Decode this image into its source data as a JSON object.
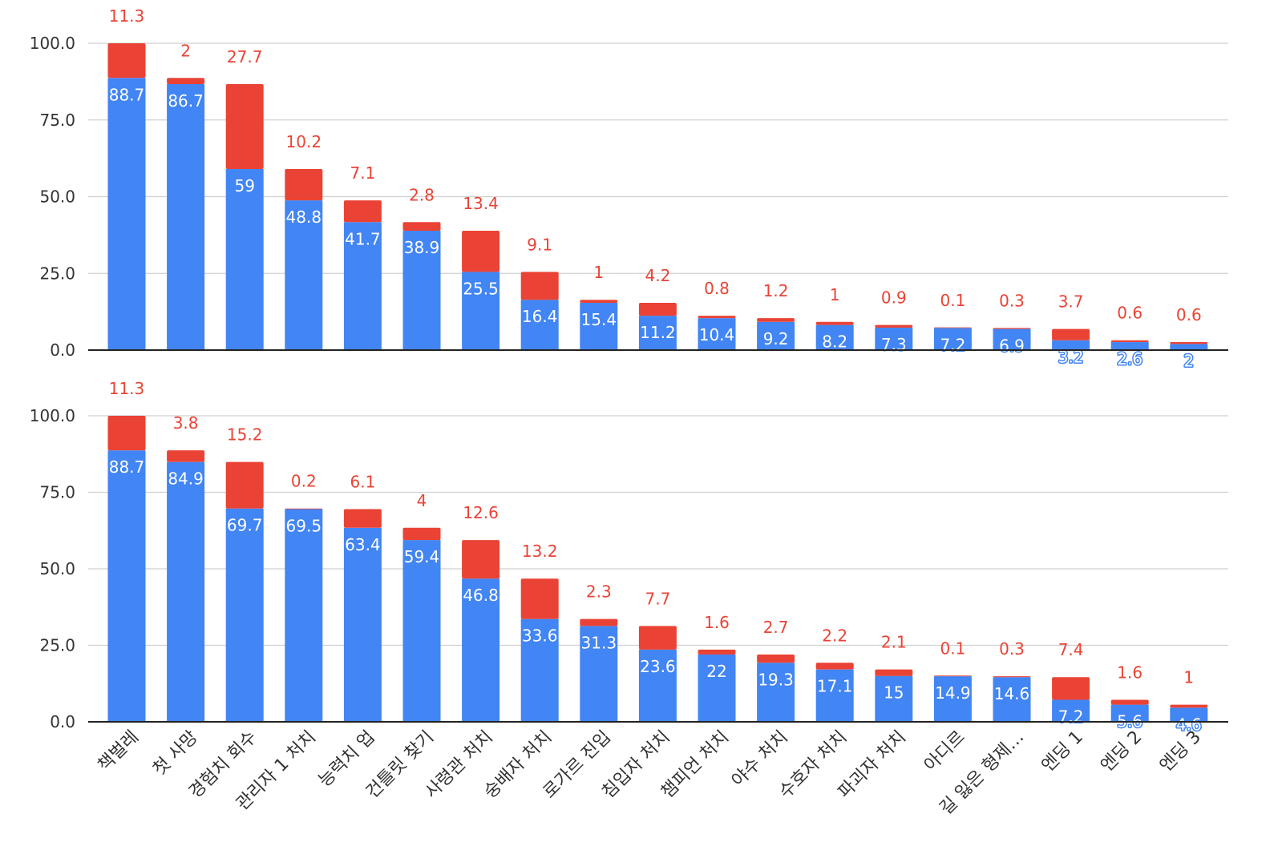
{
  "colors": {
    "base": "#4285f4",
    "top": "#ea4335",
    "grid": "#d0d0d0",
    "axis": "#222222",
    "tick": "#333333"
  },
  "chart_data": [
    {
      "type": "bar",
      "stacked": true,
      "title": "",
      "xlabel": "",
      "ylabel": "",
      "ylim": [
        0,
        100
      ],
      "yticks": [
        "0.0",
        "25.0",
        "50.0",
        "75.0",
        "100.0"
      ],
      "categories": [
        "책벌레",
        "첫 사망",
        "경험치 회수",
        "관리자 1 처치",
        "능력치 업",
        "건틀릿 찾기",
        "사령관 처치",
        "숭배자 처치",
        "로가르 진입",
        "침입자 처치",
        "챔피언 처치",
        "야수 처치",
        "수호자 처치",
        "파괴자 처치",
        "아디르",
        "길 잃은 형제…",
        "엔딩 1",
        "엔딩 2",
        "엔딩 3"
      ],
      "series": [
        {
          "name": "base",
          "color": "#4285f4",
          "values": [
            88.7,
            86.7,
            59,
            48.8,
            41.7,
            38.9,
            25.5,
            16.4,
            15.4,
            11.2,
            10.4,
            9.2,
            8.2,
            7.3,
            7.2,
            6.9,
            3.2,
            2.6,
            2
          ],
          "labels": [
            "88.7",
            "86.7",
            "59",
            "48.8",
            "41.7",
            "38.9",
            "25.5",
            "16.4",
            "15.4",
            "11.2",
            "10.4",
            "9.2",
            "8.2",
            "7.3",
            "7.2",
            "6.9",
            "3.2",
            "2.6",
            "2"
          ]
        },
        {
          "name": "extra",
          "color": "#ea4335",
          "values": [
            11.3,
            2,
            27.7,
            10.2,
            7.1,
            2.8,
            13.4,
            9.1,
            1,
            4.2,
            0.8,
            1.2,
            1,
            0.9,
            0.1,
            0.3,
            3.7,
            0.6,
            0.6
          ],
          "labels": [
            "11.3",
            "2",
            "27.7",
            "10.2",
            "7.1",
            "2.8",
            "13.4",
            "9.1",
            "1",
            "4.2",
            "0.8",
            "1.2",
            "1",
            "0.9",
            "0.1",
            "0.3",
            "3.7",
            "0.6",
            "0.6"
          ]
        }
      ]
    },
    {
      "type": "bar",
      "stacked": true,
      "title": "",
      "xlabel": "",
      "ylabel": "",
      "ylim": [
        0,
        100
      ],
      "yticks": [
        "0.0",
        "25.0",
        "50.0",
        "75.0",
        "100.0"
      ],
      "categories": [
        "책벌레",
        "첫 사망",
        "경험치 회수",
        "관리자 1 처치",
        "능력치 업",
        "건틀릿 찾기",
        "사령관 처치",
        "숭배자 처치",
        "로가르 진입",
        "침입자 처치",
        "챔피언 처치",
        "야수 처치",
        "수호자 처치",
        "파괴자 처치",
        "아디르",
        "길 잃은 형제…",
        "엔딩 1",
        "엔딩 2",
        "엔딩 3"
      ],
      "series": [
        {
          "name": "base",
          "color": "#4285f4",
          "values": [
            88.7,
            84.9,
            69.7,
            69.5,
            63.4,
            59.4,
            46.8,
            33.6,
            31.3,
            23.6,
            22,
            19.3,
            17.1,
            15,
            14.9,
            14.6,
            7.2,
            5.6,
            4.6
          ],
          "labels": [
            "88.7",
            "84.9",
            "69.7",
            "69.5",
            "63.4",
            "59.4",
            "46.8",
            "33.6",
            "31.3",
            "23.6",
            "22",
            "19.3",
            "17.1",
            "15",
            "14.9",
            "14.6",
            "7.2",
            "5.6",
            "4.6"
          ]
        },
        {
          "name": "extra",
          "color": "#ea4335",
          "values": [
            11.3,
            3.8,
            15.2,
            0.2,
            6.1,
            4,
            12.6,
            13.2,
            2.3,
            7.7,
            1.6,
            2.7,
            2.2,
            2.1,
            0.1,
            0.3,
            7.4,
            1.6,
            1
          ],
          "labels": [
            "11.3",
            "3.8",
            "15.2",
            "0.2",
            "6.1",
            "4",
            "12.6",
            "13.2",
            "2.3",
            "7.7",
            "1.6",
            "2.7",
            "2.2",
            "2.1",
            "0.1",
            "0.3",
            "7.4",
            "1.6",
            "1"
          ]
        }
      ]
    }
  ]
}
